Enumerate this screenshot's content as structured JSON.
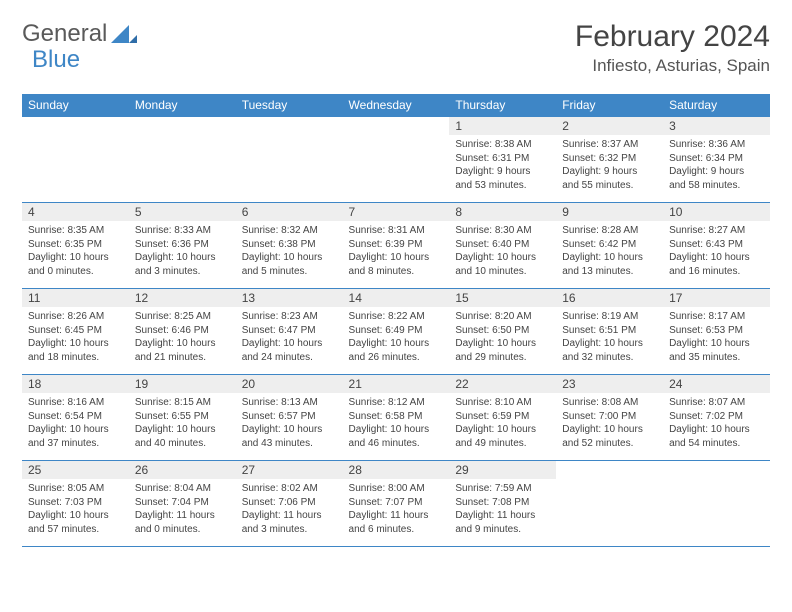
{
  "logo": {
    "text1": "General",
    "text2": "Blue"
  },
  "title": "February 2024",
  "location": "Infiesto, Asturias, Spain",
  "colors": {
    "accent": "#3e86c6",
    "header_bg": "#eeeeee",
    "text": "#444444"
  },
  "days_of_week": [
    "Sunday",
    "Monday",
    "Tuesday",
    "Wednesday",
    "Thursday",
    "Friday",
    "Saturday"
  ],
  "weeks": [
    [
      null,
      null,
      null,
      null,
      {
        "n": "1",
        "sr": "Sunrise: 8:38 AM",
        "ss": "Sunset: 6:31 PM",
        "d1": "Daylight: 9 hours",
        "d2": "and 53 minutes."
      },
      {
        "n": "2",
        "sr": "Sunrise: 8:37 AM",
        "ss": "Sunset: 6:32 PM",
        "d1": "Daylight: 9 hours",
        "d2": "and 55 minutes."
      },
      {
        "n": "3",
        "sr": "Sunrise: 8:36 AM",
        "ss": "Sunset: 6:34 PM",
        "d1": "Daylight: 9 hours",
        "d2": "and 58 minutes."
      }
    ],
    [
      {
        "n": "4",
        "sr": "Sunrise: 8:35 AM",
        "ss": "Sunset: 6:35 PM",
        "d1": "Daylight: 10 hours",
        "d2": "and 0 minutes."
      },
      {
        "n": "5",
        "sr": "Sunrise: 8:33 AM",
        "ss": "Sunset: 6:36 PM",
        "d1": "Daylight: 10 hours",
        "d2": "and 3 minutes."
      },
      {
        "n": "6",
        "sr": "Sunrise: 8:32 AM",
        "ss": "Sunset: 6:38 PM",
        "d1": "Daylight: 10 hours",
        "d2": "and 5 minutes."
      },
      {
        "n": "7",
        "sr": "Sunrise: 8:31 AM",
        "ss": "Sunset: 6:39 PM",
        "d1": "Daylight: 10 hours",
        "d2": "and 8 minutes."
      },
      {
        "n": "8",
        "sr": "Sunrise: 8:30 AM",
        "ss": "Sunset: 6:40 PM",
        "d1": "Daylight: 10 hours",
        "d2": "and 10 minutes."
      },
      {
        "n": "9",
        "sr": "Sunrise: 8:28 AM",
        "ss": "Sunset: 6:42 PM",
        "d1": "Daylight: 10 hours",
        "d2": "and 13 minutes."
      },
      {
        "n": "10",
        "sr": "Sunrise: 8:27 AM",
        "ss": "Sunset: 6:43 PM",
        "d1": "Daylight: 10 hours",
        "d2": "and 16 minutes."
      }
    ],
    [
      {
        "n": "11",
        "sr": "Sunrise: 8:26 AM",
        "ss": "Sunset: 6:45 PM",
        "d1": "Daylight: 10 hours",
        "d2": "and 18 minutes."
      },
      {
        "n": "12",
        "sr": "Sunrise: 8:25 AM",
        "ss": "Sunset: 6:46 PM",
        "d1": "Daylight: 10 hours",
        "d2": "and 21 minutes."
      },
      {
        "n": "13",
        "sr": "Sunrise: 8:23 AM",
        "ss": "Sunset: 6:47 PM",
        "d1": "Daylight: 10 hours",
        "d2": "and 24 minutes."
      },
      {
        "n": "14",
        "sr": "Sunrise: 8:22 AM",
        "ss": "Sunset: 6:49 PM",
        "d1": "Daylight: 10 hours",
        "d2": "and 26 minutes."
      },
      {
        "n": "15",
        "sr": "Sunrise: 8:20 AM",
        "ss": "Sunset: 6:50 PM",
        "d1": "Daylight: 10 hours",
        "d2": "and 29 minutes."
      },
      {
        "n": "16",
        "sr": "Sunrise: 8:19 AM",
        "ss": "Sunset: 6:51 PM",
        "d1": "Daylight: 10 hours",
        "d2": "and 32 minutes."
      },
      {
        "n": "17",
        "sr": "Sunrise: 8:17 AM",
        "ss": "Sunset: 6:53 PM",
        "d1": "Daylight: 10 hours",
        "d2": "and 35 minutes."
      }
    ],
    [
      {
        "n": "18",
        "sr": "Sunrise: 8:16 AM",
        "ss": "Sunset: 6:54 PM",
        "d1": "Daylight: 10 hours",
        "d2": "and 37 minutes."
      },
      {
        "n": "19",
        "sr": "Sunrise: 8:15 AM",
        "ss": "Sunset: 6:55 PM",
        "d1": "Daylight: 10 hours",
        "d2": "and 40 minutes."
      },
      {
        "n": "20",
        "sr": "Sunrise: 8:13 AM",
        "ss": "Sunset: 6:57 PM",
        "d1": "Daylight: 10 hours",
        "d2": "and 43 minutes."
      },
      {
        "n": "21",
        "sr": "Sunrise: 8:12 AM",
        "ss": "Sunset: 6:58 PM",
        "d1": "Daylight: 10 hours",
        "d2": "and 46 minutes."
      },
      {
        "n": "22",
        "sr": "Sunrise: 8:10 AM",
        "ss": "Sunset: 6:59 PM",
        "d1": "Daylight: 10 hours",
        "d2": "and 49 minutes."
      },
      {
        "n": "23",
        "sr": "Sunrise: 8:08 AM",
        "ss": "Sunset: 7:00 PM",
        "d1": "Daylight: 10 hours",
        "d2": "and 52 minutes."
      },
      {
        "n": "24",
        "sr": "Sunrise: 8:07 AM",
        "ss": "Sunset: 7:02 PM",
        "d1": "Daylight: 10 hours",
        "d2": "and 54 minutes."
      }
    ],
    [
      {
        "n": "25",
        "sr": "Sunrise: 8:05 AM",
        "ss": "Sunset: 7:03 PM",
        "d1": "Daylight: 10 hours",
        "d2": "and 57 minutes."
      },
      {
        "n": "26",
        "sr": "Sunrise: 8:04 AM",
        "ss": "Sunset: 7:04 PM",
        "d1": "Daylight: 11 hours",
        "d2": "and 0 minutes."
      },
      {
        "n": "27",
        "sr": "Sunrise: 8:02 AM",
        "ss": "Sunset: 7:06 PM",
        "d1": "Daylight: 11 hours",
        "d2": "and 3 minutes."
      },
      {
        "n": "28",
        "sr": "Sunrise: 8:00 AM",
        "ss": "Sunset: 7:07 PM",
        "d1": "Daylight: 11 hours",
        "d2": "and 6 minutes."
      },
      {
        "n": "29",
        "sr": "Sunrise: 7:59 AM",
        "ss": "Sunset: 7:08 PM",
        "d1": "Daylight: 11 hours",
        "d2": "and 9 minutes."
      },
      null,
      null
    ]
  ]
}
